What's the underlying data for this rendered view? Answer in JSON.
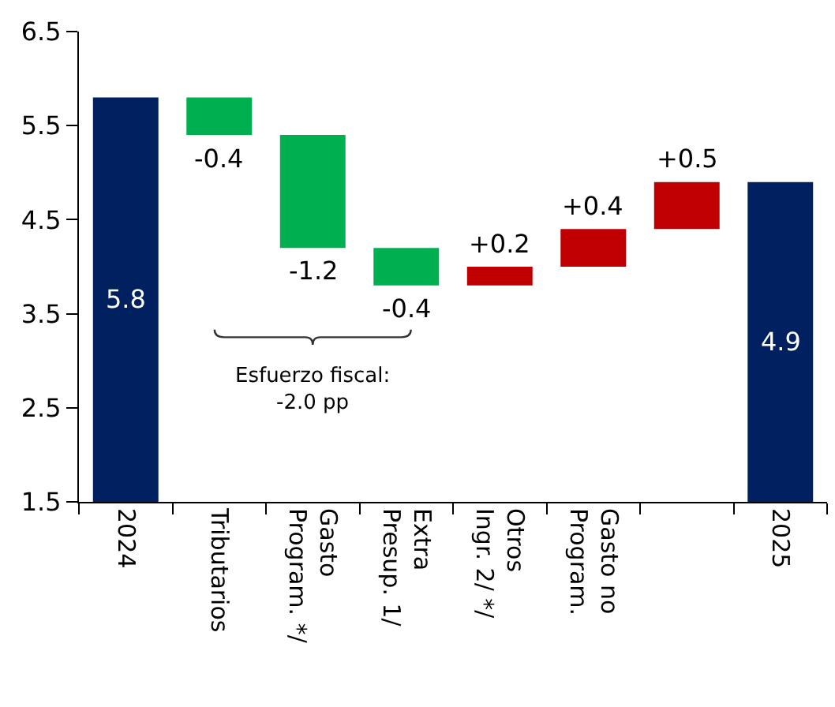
{
  "chart_data": {
    "type": "bar",
    "categories": [
      "2024",
      "Tributarios",
      "Gasto\nProgram. */",
      "Extra\nPresup. 1/",
      "Otros\nIngr. 2/ */",
      "Gasto no\nProgram.",
      null,
      "2025"
    ],
    "values": [
      5.8,
      -0.4,
      -1.2,
      -0.4,
      0.2,
      0.4,
      0.5,
      4.9
    ],
    "base": [
      0,
      5.8,
      5.4,
      4.2,
      3.8,
      4.0,
      4.4,
      0
    ],
    "colors": [
      "#002060",
      "#00b050",
      "#00b050",
      "#00b050",
      "#c00000",
      "#c00000",
      "#c00000",
      "#002060"
    ],
    "value_labels": [
      "5.8",
      "-0.4",
      "-1.2",
      "-0.4",
      "+0.2",
      "+0.4",
      "+0.5",
      "4.9"
    ],
    "ylim": [
      1.5,
      6.5
    ],
    "yticks": [
      1.5,
      2.5,
      3.5,
      4.5,
      5.5,
      6.5
    ],
    "annotations": [
      "Esfuerzo fiscal:\n-2.0 pp"
    ]
  }
}
